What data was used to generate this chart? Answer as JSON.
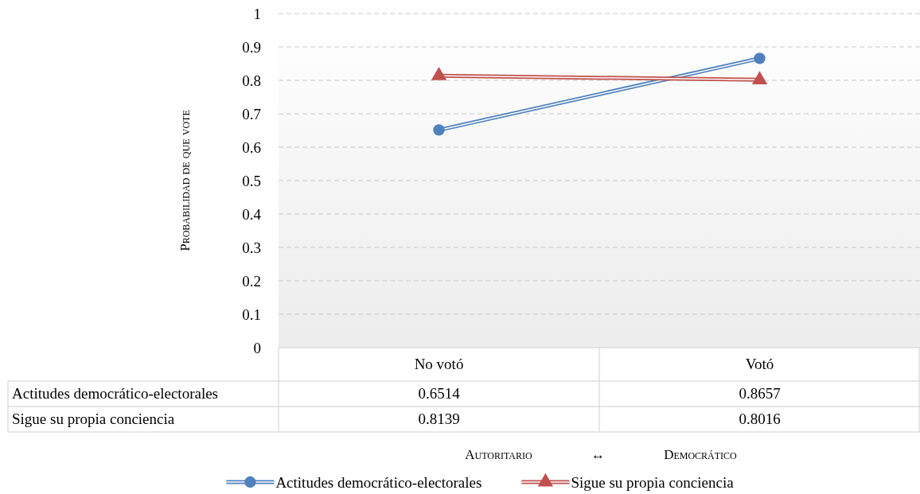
{
  "chart_data": {
    "type": "line",
    "annotations": [
      "Autoritario ↔ Democrático"
    ],
    "ylabel": "Probabilidad de que vote",
    "categories": [
      "No votó",
      "Votó"
    ],
    "ylim": [
      0,
      1
    ],
    "yticks": [
      0,
      0.1,
      0.2,
      0.3,
      0.4,
      0.5,
      0.6,
      0.7,
      0.8,
      0.9,
      1
    ],
    "grid": "y",
    "legend": "bottom",
    "data_labels": true,
    "line_style": "solid",
    "series": [
      {
        "name": "Actitudes democrático-electorales",
        "color": "#4f81bd",
        "marker": "circle",
        "values": [
          0.6514,
          0.8657
        ]
      },
      {
        "name": "Sigue su propia conciencia",
        "color": "#c0504d",
        "marker": "triangle",
        "values": [
          0.8139,
          0.8016
        ]
      }
    ]
  }
}
